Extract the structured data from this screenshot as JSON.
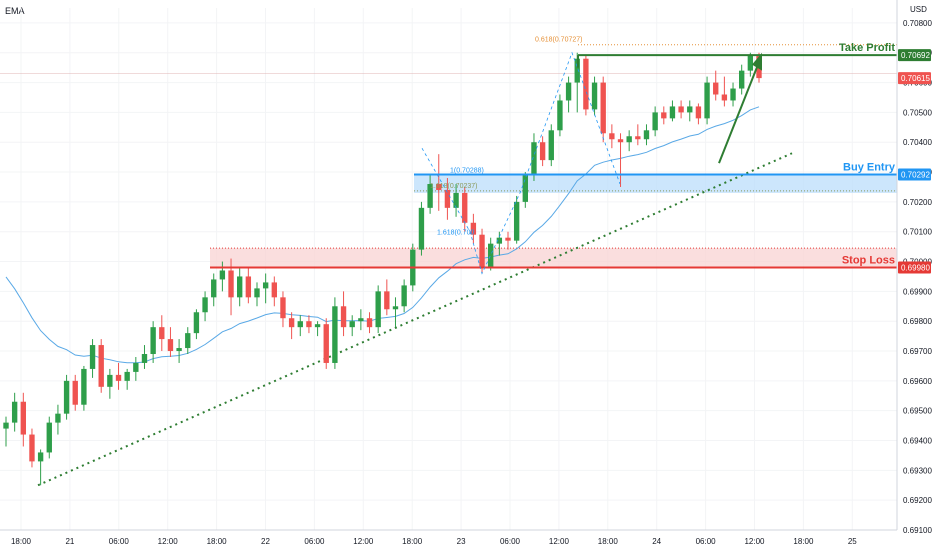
{
  "chart_data": {
    "type": "candlestick",
    "indicator_label": "EMA",
    "currency_label": "USD",
    "y_ticks": [
      "0.70800",
      "0.70700",
      "0.70600",
      "0.70500",
      "0.70400",
      "0.70300",
      "0.70200",
      "0.70100",
      "0.70000",
      "0.69900",
      "0.69800",
      "0.69700",
      "0.69600",
      "0.69500",
      "0.69400",
      "0.69300",
      "0.69200",
      "0.69100"
    ],
    "ylim": [
      0.691,
      0.7085
    ],
    "x_ticks": [
      "18:00",
      "21",
      "06:00",
      "12:00",
      "18:00",
      "22",
      "06:00",
      "12:00",
      "18:00",
      "23",
      "06:00",
      "12:00",
      "18:00",
      "24",
      "06:00",
      "12:00",
      "18:00",
      "25"
    ],
    "price_tags": [
      {
        "value": 0.70692,
        "label": "0.70692",
        "color": "#2e7d32"
      },
      {
        "value": 0.70615,
        "label": "0.70615",
        "color": "#ef5350"
      },
      {
        "value": 0.70292,
        "label": "0.70292",
        "color": "#2196f3"
      },
      {
        "value": 0.6998,
        "label": "0.69980",
        "color": "#e53935"
      }
    ],
    "levels": [
      {
        "name": "take-profit",
        "label": "Take Profit",
        "value": 0.70692,
        "color": "#2e7d32"
      },
      {
        "name": "buy-entry",
        "label": "Buy Entry",
        "value": 0.70292,
        "color": "#2196f3"
      },
      {
        "name": "stop-loss",
        "label": "Stop Loss",
        "value": 0.6998,
        "color": "#e53935"
      }
    ],
    "zones": [
      {
        "name": "buy-zone",
        "from": 0.7023,
        "to": 0.70292,
        "color": "#bbdefb"
      },
      {
        "name": "sell-zone",
        "from": 0.6998,
        "to": 0.70045,
        "color": "#f8d3d3"
      }
    ],
    "fib_labels": [
      {
        "text": "0.618(0.70727)",
        "value": 0.70727,
        "color": "#e69138"
      },
      {
        "text": "1(0.70288)",
        "value": 0.70288,
        "color": "#2196f3"
      },
      {
        "text": "1.618(0.70237)",
        "value": 0.70237,
        "color": "#8a9a5b"
      },
      {
        "text": "1.618(0.700",
        "value": 0.7008,
        "color": "#2196f3"
      }
    ],
    "candles": [
      [
        0.6944,
        0.6948,
        0.6938,
        0.6946
      ],
      [
        0.6946,
        0.6956,
        0.6943,
        0.6953
      ],
      [
        0.6953,
        0.6956,
        0.6938,
        0.6942
      ],
      [
        0.6942,
        0.6944,
        0.6931,
        0.6933
      ],
      [
        0.6933,
        0.6937,
        0.6925,
        0.6936
      ],
      [
        0.6936,
        0.6948,
        0.6934,
        0.6946
      ],
      [
        0.6946,
        0.6952,
        0.6942,
        0.6949
      ],
      [
        0.6949,
        0.6962,
        0.6947,
        0.696
      ],
      [
        0.696,
        0.6962,
        0.695,
        0.6952
      ],
      [
        0.6952,
        0.6965,
        0.695,
        0.6964
      ],
      [
        0.6964,
        0.6974,
        0.6961,
        0.6972
      ],
      [
        0.6972,
        0.6974,
        0.6956,
        0.6958
      ],
      [
        0.6958,
        0.6964,
        0.6954,
        0.6962
      ],
      [
        0.6962,
        0.6966,
        0.6957,
        0.696
      ],
      [
        0.696,
        0.6964,
        0.6957,
        0.6963
      ],
      [
        0.6963,
        0.6968,
        0.696,
        0.6966
      ],
      [
        0.6966,
        0.6972,
        0.6964,
        0.6969
      ],
      [
        0.6969,
        0.698,
        0.6966,
        0.6978
      ],
      [
        0.6978,
        0.6982,
        0.697,
        0.6974
      ],
      [
        0.6974,
        0.6978,
        0.6968,
        0.697
      ],
      [
        0.697,
        0.6974,
        0.6966,
        0.6971
      ],
      [
        0.6971,
        0.6978,
        0.6969,
        0.6976
      ],
      [
        0.6976,
        0.6984,
        0.6974,
        0.6983
      ],
      [
        0.6983,
        0.699,
        0.698,
        0.6988
      ],
      [
        0.6988,
        0.6996,
        0.6985,
        0.6994
      ],
      [
        0.6994,
        0.7,
        0.699,
        0.6997
      ],
      [
        0.6997,
        0.7001,
        0.6982,
        0.6988
      ],
      [
        0.6988,
        0.6998,
        0.6985,
        0.6995
      ],
      [
        0.6995,
        0.6998,
        0.6986,
        0.6988
      ],
      [
        0.6988,
        0.6993,
        0.6985,
        0.6991
      ],
      [
        0.6991,
        0.6996,
        0.6986,
        0.6993
      ],
      [
        0.6993,
        0.6995,
        0.6985,
        0.6988
      ],
      [
        0.6988,
        0.699,
        0.6978,
        0.6981
      ],
      [
        0.6981,
        0.6983,
        0.6974,
        0.6978
      ],
      [
        0.6978,
        0.6982,
        0.6975,
        0.698
      ],
      [
        0.698,
        0.6982,
        0.6976,
        0.6978
      ],
      [
        0.6978,
        0.698,
        0.6975,
        0.6979
      ],
      [
        0.6979,
        0.6981,
        0.6964,
        0.6966
      ],
      [
        0.6966,
        0.6988,
        0.6964,
        0.6985
      ],
      [
        0.6985,
        0.699,
        0.6975,
        0.6978
      ],
      [
        0.6978,
        0.6982,
        0.6975,
        0.698
      ],
      [
        0.698,
        0.6984,
        0.6977,
        0.6981
      ],
      [
        0.6981,
        0.6983,
        0.6976,
        0.6978
      ],
      [
        0.6978,
        0.6992,
        0.6976,
        0.699
      ],
      [
        0.699,
        0.6994,
        0.6982,
        0.6984
      ],
      [
        0.6984,
        0.6988,
        0.6978,
        0.6985
      ],
      [
        0.6985,
        0.6994,
        0.6983,
        0.6992
      ],
      [
        0.6992,
        0.7006,
        0.699,
        0.7004
      ],
      [
        0.7004,
        0.702,
        0.7002,
        0.7018
      ],
      [
        0.7018,
        0.7029,
        0.7016,
        0.7026
      ],
      [
        0.7026,
        0.7036,
        0.7017,
        0.7024
      ],
      [
        0.7024,
        0.7028,
        0.7014,
        0.7018
      ],
      [
        0.7018,
        0.7026,
        0.7015,
        0.7023
      ],
      [
        0.7023,
        0.7025,
        0.701,
        0.7013
      ],
      [
        0.7013,
        0.7016,
        0.7006,
        0.7009
      ],
      [
        0.7009,
        0.7011,
        0.6996,
        0.6998
      ],
      [
        0.6998,
        0.7008,
        0.6997,
        0.7006
      ],
      [
        0.7006,
        0.701,
        0.7002,
        0.7008
      ],
      [
        0.7008,
        0.701,
        0.7004,
        0.7007
      ],
      [
        0.7007,
        0.7022,
        0.7006,
        0.702
      ],
      [
        0.702,
        0.703,
        0.7018,
        0.7029
      ],
      [
        0.7029,
        0.7043,
        0.7027,
        0.704
      ],
      [
        0.704,
        0.7042,
        0.7032,
        0.7034
      ],
      [
        0.7034,
        0.7046,
        0.7032,
        0.7044
      ],
      [
        0.7044,
        0.7056,
        0.7042,
        0.7054
      ],
      [
        0.7054,
        0.7062,
        0.705,
        0.706
      ],
      [
        0.706,
        0.707,
        0.705,
        0.7068
      ],
      [
        0.7068,
        0.7069,
        0.7049,
        0.7051
      ],
      [
        0.7051,
        0.7062,
        0.7049,
        0.706
      ],
      [
        0.706,
        0.7062,
        0.704,
        0.7043
      ],
      [
        0.7043,
        0.7046,
        0.7038,
        0.7041
      ],
      [
        0.7041,
        0.7043,
        0.7025,
        0.704
      ],
      [
        0.704,
        0.7044,
        0.7037,
        0.7042
      ],
      [
        0.7042,
        0.7046,
        0.7039,
        0.7041
      ],
      [
        0.7041,
        0.7046,
        0.7039,
        0.7044
      ],
      [
        0.7044,
        0.7052,
        0.7042,
        0.705
      ],
      [
        0.705,
        0.7052,
        0.7046,
        0.7048
      ],
      [
        0.7048,
        0.7054,
        0.7047,
        0.7052
      ],
      [
        0.7052,
        0.7054,
        0.7048,
        0.705
      ],
      [
        0.705,
        0.7054,
        0.7047,
        0.7052
      ],
      [
        0.7052,
        0.7053,
        0.7046,
        0.7048
      ],
      [
        0.7048,
        0.7062,
        0.7046,
        0.706
      ],
      [
        0.706,
        0.7064,
        0.7054,
        0.7056
      ],
      [
        0.7056,
        0.7062,
        0.7052,
        0.7054
      ],
      [
        0.7054,
        0.706,
        0.7052,
        0.7058
      ],
      [
        0.7058,
        0.7066,
        0.7056,
        0.7064
      ],
      [
        0.7064,
        0.707,
        0.7062,
        0.7069
      ],
      [
        0.7069,
        0.707,
        0.706,
        0.70615
      ]
    ]
  }
}
